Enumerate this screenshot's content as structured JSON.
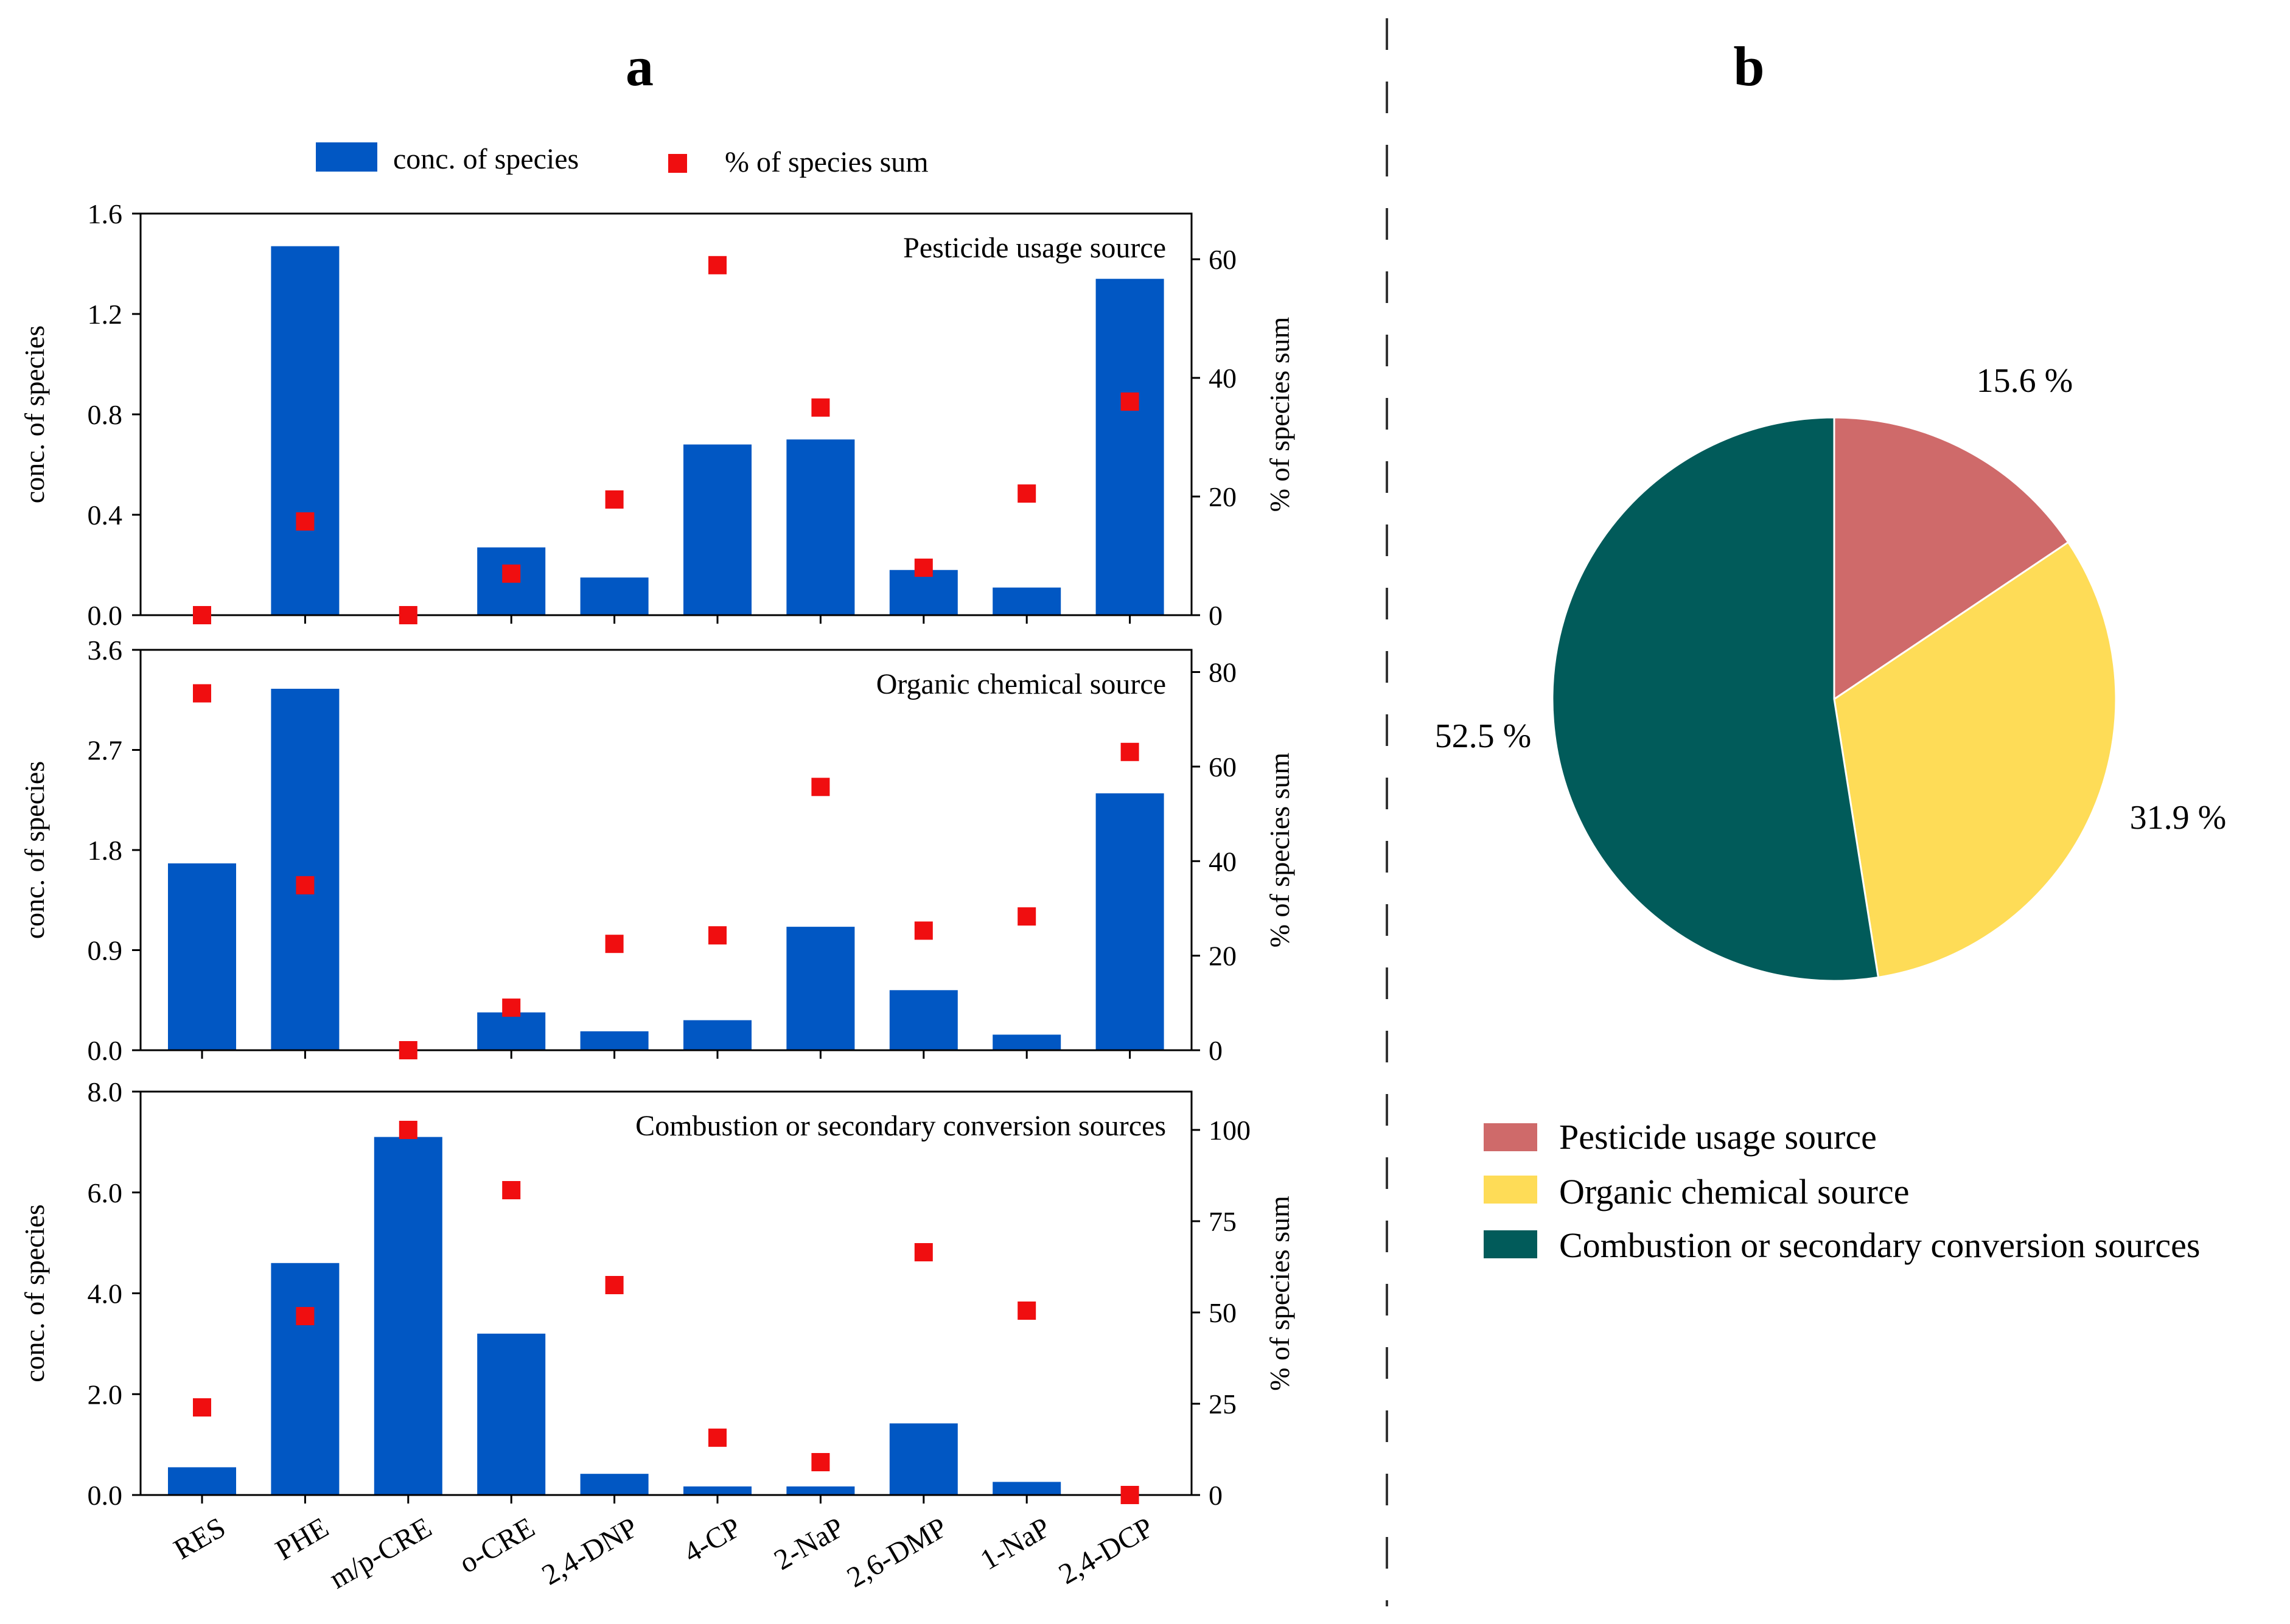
{
  "panel_labels": {
    "a": "a",
    "b": "b"
  },
  "legend": {
    "bar_label": "conc. of species",
    "marker_label": "% of species sum"
  },
  "colors": {
    "bar": "#0157C3",
    "marker": "#F00E10",
    "pie": [
      "#CF6A6A",
      "#FEDC57",
      "#015B5A"
    ]
  },
  "chart_data": [
    {
      "type": "bar",
      "title": "Pesticide usage source",
      "categories": [
        "RES",
        "PHE",
        "m/p-CRE",
        "o-CRE",
        "2,4-DNP",
        "4-CP",
        "2-NaP",
        "2,6-DMP",
        "1-NaP",
        "2,4-DCP"
      ],
      "series": [
        {
          "name": "conc. of species",
          "axis": "left",
          "values": [
            0,
            1.47,
            0,
            0.27,
            0.15,
            0.68,
            0.7,
            0.18,
            0.11,
            1.34
          ]
        },
        {
          "name": "% of species sum",
          "axis": "right",
          "marker": "square",
          "values": [
            0,
            15.8,
            0,
            7.0,
            19.5,
            59.0,
            35.0,
            8.0,
            20.5,
            36.0
          ]
        }
      ],
      "ylabel": "conc. of species",
      "ylim": [
        0,
        1.6
      ],
      "yticks": [
        "0.0",
        "0.4",
        "0.8",
        "1.2",
        "1.6"
      ],
      "y2label": "% of species sum",
      "y2lim": [
        0,
        67.7
      ],
      "y2ticks": [
        "0",
        "20",
        "40",
        "60"
      ]
    },
    {
      "type": "bar",
      "title": "Organic chemical source",
      "categories": [
        "RES",
        "PHE",
        "m/p-CRE",
        "o-CRE",
        "2,4-DNP",
        "4-CP",
        "2-NaP",
        "2,6-DMP",
        "1-NaP",
        "2,4-DCP"
      ],
      "series": [
        {
          "name": "conc. of species",
          "axis": "left",
          "values": [
            1.68,
            3.25,
            0,
            0.34,
            0.17,
            0.27,
            1.11,
            0.54,
            0.14,
            2.31
          ]
        },
        {
          "name": "% of species sum",
          "axis": "right",
          "marker": "square",
          "values": [
            75.5,
            34.9,
            0,
            9.0,
            22.5,
            24.3,
            55.7,
            25.3,
            28.3,
            63.1
          ]
        }
      ],
      "ylabel": "conc. of species",
      "ylim": [
        0,
        3.6
      ],
      "yticks": [
        "0.0",
        "0.9",
        "1.8",
        "2.7",
        "3.6"
      ],
      "y2label": "% of species sum",
      "y2lim": [
        0,
        84.7
      ],
      "y2ticks": [
        "0",
        "20",
        "40",
        "60",
        "80"
      ]
    },
    {
      "type": "bar",
      "title": "Combustion or secondary conversion sources",
      "categories": [
        "RES",
        "PHE",
        "m/p-CRE",
        "o-CRE",
        "2,4-DNP",
        "4-CP",
        "2-NaP",
        "2,6-DMP",
        "1-NaP",
        "2,4-DCP"
      ],
      "series": [
        {
          "name": "conc. of species",
          "axis": "left",
          "values": [
            0.55,
            4.6,
            7.1,
            3.2,
            0.42,
            0.17,
            0.17,
            1.42,
            0.26,
            0
          ]
        },
        {
          "name": "% of species sum",
          "axis": "right",
          "marker": "square",
          "values": [
            24.0,
            49.0,
            100.0,
            83.5,
            57.5,
            15.7,
            9.0,
            66.5,
            50.5,
            0
          ]
        }
      ],
      "ylabel": "conc. of species",
      "ylim": [
        0,
        8.0
      ],
      "yticks": [
        "0.0",
        "2.0",
        "4.0",
        "6.0",
        "8.0"
      ],
      "y2label": "% of species sum",
      "y2lim": [
        0,
        110.5
      ],
      "y2ticks": [
        "0",
        "25",
        "50",
        "75",
        "100"
      ]
    },
    {
      "type": "pie",
      "labels": [
        "Pesticide usage source",
        "Organic chemical source",
        "Combustion or secondary conversion sources"
      ],
      "values": [
        15.6,
        31.9,
        52.5
      ],
      "value_labels": [
        "15.6 %",
        "31.9 %",
        "52.5 %"
      ],
      "start": "top",
      "direction": "clockwise"
    }
  ]
}
